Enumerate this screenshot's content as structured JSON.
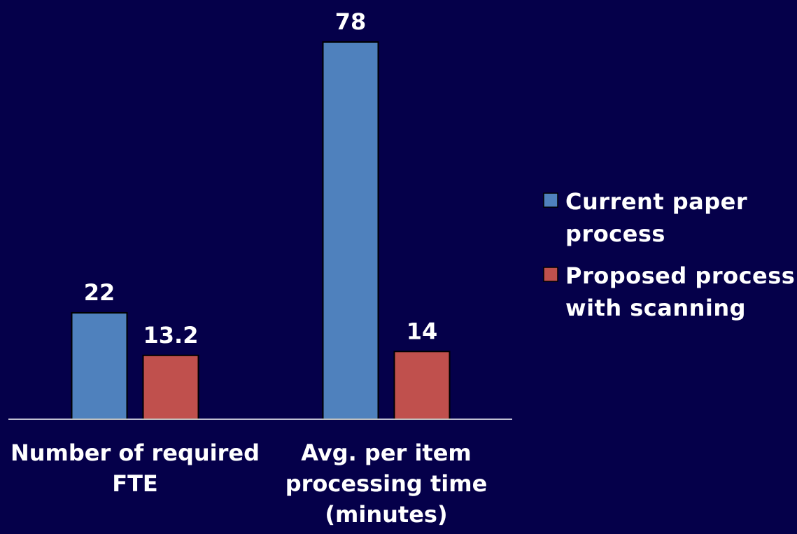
{
  "colors": {
    "background": "#05004a",
    "axis": "#ffffff",
    "text": "#ffffff"
  },
  "chart_data": {
    "type": "bar",
    "categories": [
      [
        "Number of required",
        "FTE"
      ],
      [
        "Avg. per item",
        "processing time",
        "(minutes)"
      ]
    ],
    "series": [
      {
        "name": [
          "Current paper",
          "process"
        ],
        "values": [
          22,
          78
        ],
        "labels": [
          "22",
          "78"
        ],
        "color": "#4f81bd"
      },
      {
        "name": [
          "Proposed process",
          "with scanning"
        ],
        "values": [
          13.2,
          14
        ],
        "labels": [
          "13.2",
          "14"
        ],
        "color": "#c0504d"
      }
    ],
    "ylim": [
      0,
      78
    ],
    "grid": false,
    "legend": "right"
  }
}
